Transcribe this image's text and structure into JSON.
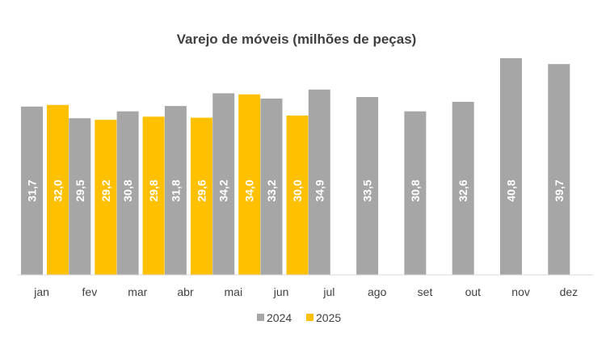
{
  "chart_data": {
    "type": "bar",
    "title": "Varejo de móveis (milhões de peças)",
    "xlabel": "",
    "ylabel": "",
    "categories": [
      "jan",
      "fev",
      "mar",
      "abr",
      "mai",
      "jun",
      "jul",
      "ago",
      "set",
      "out",
      "nov",
      "dez"
    ],
    "series": [
      {
        "name": "2024",
        "color": "#a6a6a6",
        "values": [
          31.7,
          29.5,
          30.8,
          31.8,
          34.2,
          33.2,
          34.9,
          33.5,
          30.8,
          32.6,
          40.8,
          39.7
        ],
        "labels": [
          "31,7",
          "29,5",
          "30,8",
          "31,8",
          "34,2",
          "33,2",
          "34,9",
          "33,5",
          "30,8",
          "32,6",
          "40,8",
          "39,7"
        ]
      },
      {
        "name": "2025",
        "color": "#ffc000",
        "values": [
          32.0,
          29.2,
          29.8,
          29.6,
          34.0,
          30.0,
          null,
          null,
          null,
          null,
          null,
          null
        ],
        "labels": [
          "32,0",
          "29,2",
          "29,8",
          "29,6",
          "34,0",
          "30,0",
          "",
          "",
          "",
          "",
          "",
          ""
        ]
      }
    ],
    "ylim": [
      0,
      40.8
    ],
    "grid": false,
    "legend": "bottom"
  }
}
